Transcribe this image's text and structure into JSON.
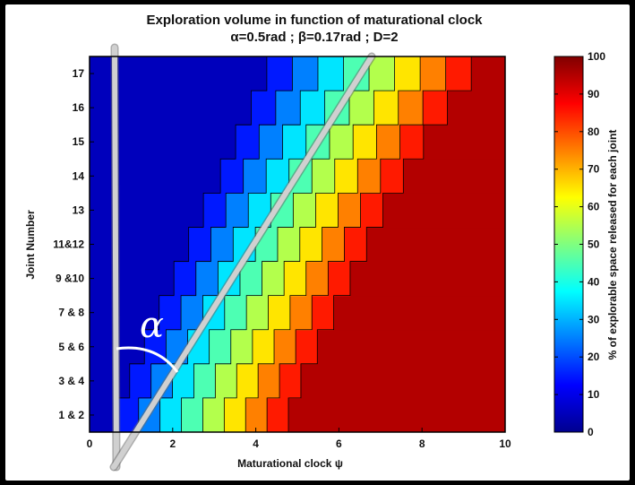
{
  "chart_data": {
    "type": "heatmap",
    "title": "Exploration volume in function of maturational clock",
    "subtitle": "α=0.5rad ; β=0.17rad ; D=2",
    "xlabel": "Maturational clock ψ",
    "ylabel": "Joint Number",
    "colorbar_label": "% of explorable space released for each joint",
    "xlim": [
      0,
      10
    ],
    "x_ticks": [
      "0",
      "2",
      "4",
      "6",
      "8",
      "10"
    ],
    "y_tick_labels": [
      "1 & 2",
      "3 & 4",
      "5 & 6",
      "7 & 8",
      "9 &10",
      "11&12",
      "13",
      "14",
      "15",
      "16",
      "17"
    ],
    "colorbar_range": [
      0,
      100
    ],
    "colorbar_ticks": [
      "0",
      "10",
      "20",
      "30",
      "40",
      "50",
      "60",
      "70",
      "80",
      "90",
      "100"
    ],
    "colormap": "jet",
    "contour_levels": [
      10,
      20,
      30,
      40,
      50,
      60,
      70,
      80,
      90
    ],
    "annotation": "α",
    "rows": [
      {
        "joint": "1 & 2",
        "onset": 0.15,
        "full": 5.3
      },
      {
        "joint": "3 & 4",
        "onset": 0.45,
        "full": 5.6
      },
      {
        "joint": "5 & 6",
        "onset": 0.8,
        "full": 6.0
      },
      {
        "joint": "7 & 8",
        "onset": 1.15,
        "full": 6.4
      },
      {
        "joint": "9 &10",
        "onset": 1.5,
        "full": 6.8
      },
      {
        "joint": "11&12",
        "onset": 1.85,
        "full": 7.2
      },
      {
        "joint": "13",
        "onset": 2.2,
        "full": 7.6
      },
      {
        "joint": "14",
        "onset": 2.6,
        "full": 8.1
      },
      {
        "joint": "15",
        "onset": 2.95,
        "full": 8.6
      },
      {
        "joint": "16",
        "onset": 3.3,
        "full": 9.2
      },
      {
        "joint": "17",
        "onset": 3.65,
        "full": 9.8
      }
    ]
  }
}
